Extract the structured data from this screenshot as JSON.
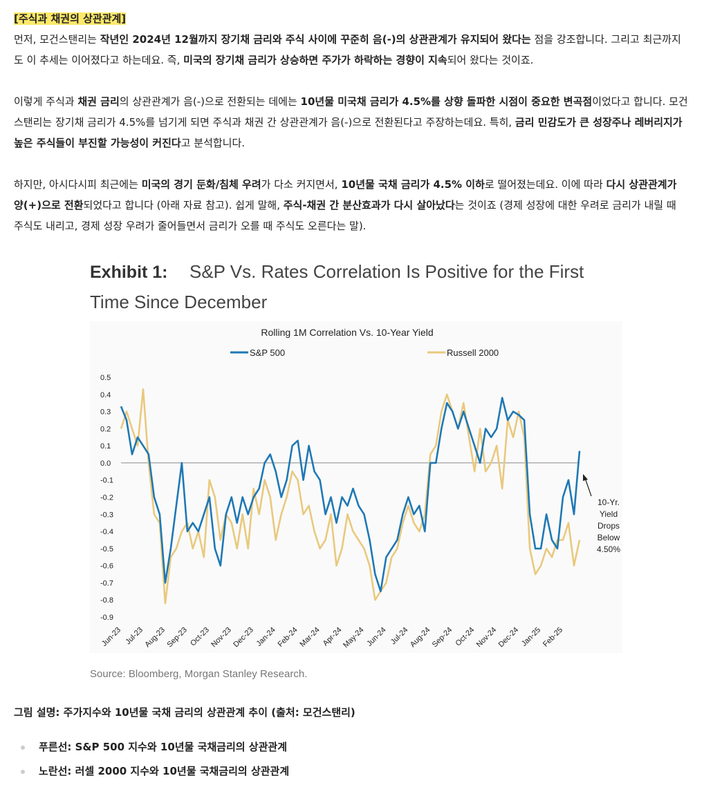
{
  "heading": "[주식과 채권의 상관관계]",
  "paragraphs": [
    {
      "runs": [
        {
          "text": "먼저, 모건스탠리는 ",
          "bold": false
        },
        {
          "text": "작년인 2024년 12월까지 장기채 금리와 주식 사이에 꾸준히 음(-)의 상관관계가 유지되어 왔다는",
          "bold": true
        },
        {
          "text": " 점을 강조합니다. 그리고 최근까지도 이 추세는 이어졌다고 하는데요. 즉, ",
          "bold": false
        },
        {
          "text": "미국의 장기채 금리가 상승하면 주가가 하락하는 경향이 지속",
          "bold": true
        },
        {
          "text": "되어 왔다는 것이죠.",
          "bold": false
        }
      ]
    },
    {
      "runs": [
        {
          "text": "이렇게 주식과 ",
          "bold": false
        },
        {
          "text": "채권 금리",
          "bold": true
        },
        {
          "text": "의 상관관계가 음(-)으로 전환되는 데에는 ",
          "bold": false
        },
        {
          "text": "10년물 미국채 금리가 4.5%를 상향 돌파한 시점이 중요한 변곡점",
          "bold": true
        },
        {
          "text": "이었다고 합니다. 모건스탠리는 장기채 금리가 4.5%를 넘기게 되면 주식과 채권 간 상관관계가 음(-)으로 전환된다고 주장하는데요. 특히, ",
          "bold": false
        },
        {
          "text": "금리 민감도가 큰 성장주나 레버리지가 높은 주식들이 부진할 가능성이 커진다",
          "bold": true
        },
        {
          "text": "고 분석합니다.",
          "bold": false
        }
      ]
    },
    {
      "runs": [
        {
          "text": "하지만, 아시다시피 최근에는 ",
          "bold": false
        },
        {
          "text": "미국의 경기 둔화/침체 우려",
          "bold": true
        },
        {
          "text": "가 다소 커지면서, ",
          "bold": false
        },
        {
          "text": "10년물 국채 금리가 4.5% 이하",
          "bold": true
        },
        {
          "text": "로 떨어졌는데요. 이에 따라 ",
          "bold": false
        },
        {
          "text": "다시 상관관계가 양(+)으로 전환",
          "bold": true
        },
        {
          "text": "되었다고 합니다 (아래 자료 참고). 쉽게 말해, ",
          "bold": false
        },
        {
          "text": "주식-채권 간 분산효과가 다시 살아났다",
          "bold": true
        },
        {
          "text": "는 것이죠 (경제 성장에 대한 우려로 금리가 내릴 때 주식도 내리고, 경제 성장 우려가 줄어들면서 금리가 오를 때 주식도 오른다는 말).",
          "bold": false
        }
      ]
    }
  ],
  "chart_data": {
    "type": "line",
    "exhibit": "Exhibit 1:",
    "title_lines": [
      "S&P Vs. Rates Correlation Is Positive for the First",
      "Time Since December"
    ],
    "subtitle": "Rolling 1M Correlation Vs. 10-Year Yield",
    "annotation_lines": [
      "10-Yr.",
      "Yield",
      "Drops",
      "Below",
      "4.50%"
    ],
    "source": "Source: Bloomberg, Morgan Stanley Research.",
    "categories": [
      "Jun-23",
      null,
      null,
      null,
      "Jul-23",
      null,
      null,
      null,
      "Aug-23",
      null,
      null,
      null,
      "Sep-23",
      null,
      null,
      null,
      "Oct-23",
      null,
      null,
      null,
      "Nov-23",
      null,
      null,
      null,
      "Dec-23",
      null,
      null,
      null,
      "Jan-24",
      null,
      null,
      null,
      "Feb-24",
      null,
      null,
      null,
      "Mar-24",
      null,
      null,
      null,
      "Apr-24",
      null,
      null,
      null,
      "May-24",
      null,
      null,
      null,
      "Jun-24",
      null,
      null,
      null,
      "Jul-24",
      null,
      null,
      null,
      "Aug-24",
      null,
      null,
      null,
      "Sep-24",
      null,
      null,
      null,
      "Oct-24",
      null,
      null,
      null,
      "Nov-24",
      null,
      null,
      null,
      "Dec-24",
      null,
      null,
      null,
      "Jan-25",
      null,
      null,
      null,
      "Feb-25",
      null,
      null,
      null
    ],
    "series": [
      {
        "name": "S&P 500",
        "color": "#1f78b4",
        "values": [
          0.33,
          0.25,
          0.05,
          0.15,
          0.1,
          0.05,
          -0.2,
          -0.3,
          -0.7,
          -0.5,
          -0.25,
          0.0,
          -0.4,
          -0.35,
          -0.4,
          -0.3,
          -0.2,
          -0.5,
          -0.6,
          -0.3,
          -0.2,
          -0.35,
          -0.2,
          -0.3,
          -0.2,
          -0.15,
          0.0,
          0.05,
          -0.05,
          -0.2,
          -0.1,
          0.1,
          0.13,
          -0.1,
          0.1,
          -0.05,
          -0.1,
          -0.3,
          -0.2,
          -0.35,
          -0.2,
          -0.25,
          -0.15,
          -0.25,
          -0.3,
          -0.45,
          -0.65,
          -0.75,
          -0.55,
          -0.5,
          -0.45,
          -0.3,
          -0.2,
          -0.3,
          -0.25,
          -0.4,
          0.0,
          0.0,
          0.2,
          0.35,
          0.3,
          0.2,
          0.3,
          0.2,
          0.1,
          0.0,
          0.2,
          0.15,
          0.2,
          0.38,
          0.25,
          0.3,
          0.28,
          0.25,
          -0.3,
          -0.5,
          -0.5,
          -0.3,
          -0.45,
          -0.5,
          -0.2,
          -0.1,
          -0.3,
          0.07
        ]
      },
      {
        "name": "Russell 2000",
        "color": "#e9c97e",
        "values": [
          0.2,
          0.3,
          0.2,
          0.1,
          0.43,
          0.0,
          -0.3,
          -0.35,
          -0.82,
          -0.55,
          -0.5,
          -0.4,
          -0.35,
          -0.5,
          -0.4,
          -0.55,
          -0.1,
          -0.2,
          -0.45,
          -0.3,
          -0.35,
          -0.5,
          -0.3,
          -0.5,
          -0.15,
          -0.3,
          -0.1,
          -0.2,
          -0.45,
          -0.3,
          -0.2,
          -0.05,
          -0.1,
          -0.3,
          -0.25,
          -0.4,
          -0.5,
          -0.45,
          -0.3,
          -0.6,
          -0.5,
          -0.3,
          -0.4,
          -0.45,
          -0.5,
          -0.6,
          -0.8,
          -0.75,
          -0.7,
          -0.55,
          -0.5,
          -0.35,
          -0.25,
          -0.35,
          -0.4,
          -0.3,
          0.05,
          0.1,
          0.3,
          0.4,
          0.3,
          0.2,
          0.35,
          0.15,
          -0.05,
          0.2,
          -0.05,
          0.0,
          0.1,
          -0.15,
          0.25,
          0.15,
          0.3,
          0.15,
          -0.5,
          -0.65,
          -0.6,
          -0.5,
          -0.55,
          -0.45,
          -0.45,
          -0.35,
          -0.6,
          -0.45
        ]
      }
    ],
    "ylim": [
      -0.9,
      0.5
    ],
    "yticks": [
      0.5,
      0.4,
      0.3,
      0.2,
      0.1,
      {
        "value": 0,
        "label": "0.0"
      },
      -0.1,
      -0.2,
      -0.3,
      -0.4,
      -0.5,
      -0.6,
      -0.7,
      -0.8,
      -0.9
    ],
    "zero_line": true
  },
  "caption": "그림 설명: 주가지수와 10년물 국채 금리의 상관관계 추이 (출처: 모건스탠리)",
  "bullets": [
    "푸른선: S&P 500 지수와 10년물 국채금리의 상관관계",
    "노란선: 러셀 2000 지수와 10년물 국채금리의 상관관계"
  ]
}
